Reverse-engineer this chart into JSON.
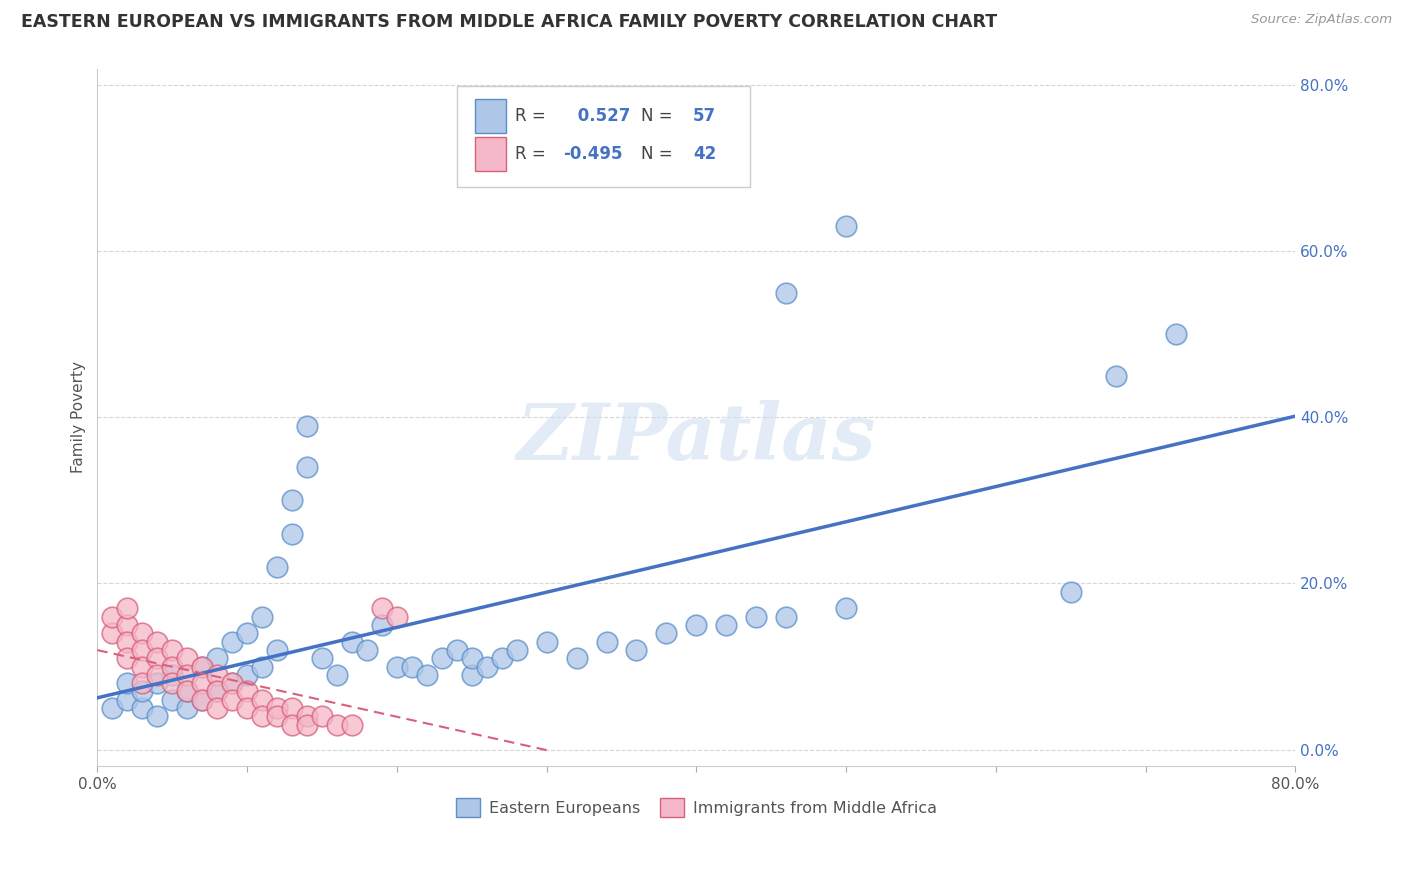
{
  "title": "EASTERN EUROPEAN VS IMMIGRANTS FROM MIDDLE AFRICA FAMILY POVERTY CORRELATION CHART",
  "source": "Source: ZipAtlas.com",
  "ylabel": "Family Poverty",
  "xlim": [
    0.0,
    0.8
  ],
  "ylim": [
    -0.02,
    0.82
  ],
  "yticks": [
    0.0,
    0.2,
    0.4,
    0.6,
    0.8
  ],
  "xticks": [
    0.0,
    0.1,
    0.2,
    0.3,
    0.4,
    0.5,
    0.6,
    0.7,
    0.8
  ],
  "blue_R": 0.527,
  "blue_N": 57,
  "pink_R": -0.495,
  "pink_N": 42,
  "blue_color": "#aec6e8",
  "pink_color": "#f4b8c8",
  "blue_edge_color": "#5b8fc9",
  "pink_edge_color": "#d9607a",
  "blue_line_color": "#4472c4",
  "pink_line_color": "#d9607a",
  "legend_label_blue": "Eastern Europeans",
  "legend_label_pink": "Immigrants from Middle Africa",
  "watermark": "ZIPatlas",
  "background_color": "#ffffff",
  "grid_color": "#cccccc",
  "title_color": "#333333",
  "blue_scatter": [
    [
      0.01,
      0.05
    ],
    [
      0.02,
      0.06
    ],
    [
      0.02,
      0.08
    ],
    [
      0.03,
      0.05
    ],
    [
      0.03,
      0.07
    ],
    [
      0.04,
      0.04
    ],
    [
      0.04,
      0.08
    ],
    [
      0.05,
      0.06
    ],
    [
      0.05,
      0.09
    ],
    [
      0.06,
      0.05
    ],
    [
      0.06,
      0.07
    ],
    [
      0.07,
      0.06
    ],
    [
      0.07,
      0.1
    ],
    [
      0.08,
      0.07
    ],
    [
      0.08,
      0.11
    ],
    [
      0.09,
      0.08
    ],
    [
      0.09,
      0.13
    ],
    [
      0.1,
      0.09
    ],
    [
      0.1,
      0.14
    ],
    [
      0.11,
      0.1
    ],
    [
      0.11,
      0.16
    ],
    [
      0.12,
      0.12
    ],
    [
      0.12,
      0.22
    ],
    [
      0.13,
      0.26
    ],
    [
      0.13,
      0.3
    ],
    [
      0.14,
      0.34
    ],
    [
      0.14,
      0.39
    ],
    [
      0.15,
      0.11
    ],
    [
      0.16,
      0.09
    ],
    [
      0.17,
      0.13
    ],
    [
      0.18,
      0.12
    ],
    [
      0.19,
      0.15
    ],
    [
      0.2,
      0.1
    ],
    [
      0.21,
      0.1
    ],
    [
      0.22,
      0.09
    ],
    [
      0.23,
      0.11
    ],
    [
      0.24,
      0.12
    ],
    [
      0.25,
      0.09
    ],
    [
      0.25,
      0.11
    ],
    [
      0.26,
      0.1
    ],
    [
      0.27,
      0.11
    ],
    [
      0.28,
      0.12
    ],
    [
      0.3,
      0.13
    ],
    [
      0.32,
      0.11
    ],
    [
      0.34,
      0.13
    ],
    [
      0.36,
      0.12
    ],
    [
      0.38,
      0.14
    ],
    [
      0.4,
      0.15
    ],
    [
      0.42,
      0.15
    ],
    [
      0.44,
      0.16
    ],
    [
      0.46,
      0.16
    ],
    [
      0.5,
      0.17
    ],
    [
      0.46,
      0.55
    ],
    [
      0.5,
      0.63
    ],
    [
      0.65,
      0.19
    ],
    [
      0.68,
      0.45
    ],
    [
      0.72,
      0.5
    ]
  ],
  "pink_scatter": [
    [
      0.01,
      0.14
    ],
    [
      0.01,
      0.16
    ],
    [
      0.02,
      0.15
    ],
    [
      0.02,
      0.17
    ],
    [
      0.02,
      0.13
    ],
    [
      0.02,
      0.11
    ],
    [
      0.03,
      0.14
    ],
    [
      0.03,
      0.12
    ],
    [
      0.03,
      0.1
    ],
    [
      0.03,
      0.08
    ],
    [
      0.04,
      0.13
    ],
    [
      0.04,
      0.11
    ],
    [
      0.04,
      0.09
    ],
    [
      0.05,
      0.12
    ],
    [
      0.05,
      0.1
    ],
    [
      0.05,
      0.08
    ],
    [
      0.06,
      0.11
    ],
    [
      0.06,
      0.09
    ],
    [
      0.06,
      0.07
    ],
    [
      0.07,
      0.1
    ],
    [
      0.07,
      0.08
    ],
    [
      0.07,
      0.06
    ],
    [
      0.08,
      0.09
    ],
    [
      0.08,
      0.07
    ],
    [
      0.08,
      0.05
    ],
    [
      0.09,
      0.08
    ],
    [
      0.09,
      0.06
    ],
    [
      0.1,
      0.07
    ],
    [
      0.1,
      0.05
    ],
    [
      0.11,
      0.06
    ],
    [
      0.11,
      0.04
    ],
    [
      0.12,
      0.05
    ],
    [
      0.12,
      0.04
    ],
    [
      0.13,
      0.05
    ],
    [
      0.13,
      0.03
    ],
    [
      0.14,
      0.04
    ],
    [
      0.14,
      0.03
    ],
    [
      0.15,
      0.04
    ],
    [
      0.16,
      0.03
    ],
    [
      0.17,
      0.03
    ],
    [
      0.19,
      0.17
    ],
    [
      0.2,
      0.16
    ]
  ]
}
